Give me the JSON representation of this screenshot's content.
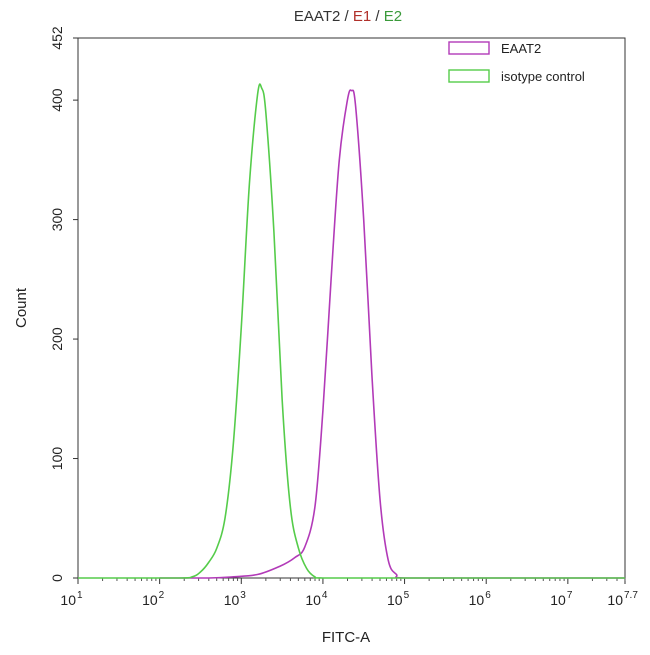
{
  "chart_data": {
    "type": "line",
    "title_parts": [
      {
        "text": "EAAT2",
        "color": "#333333"
      },
      {
        "text": " / ",
        "color": "#333333"
      },
      {
        "text": "E1",
        "color": "#b0302a"
      },
      {
        "text": " / ",
        "color": "#333333"
      },
      {
        "text": "E2",
        "color": "#3a9a3a"
      }
    ],
    "xlabel": "FITC-A",
    "ylabel": "Count",
    "x_scale": "log",
    "xlim": [
      10,
      50118723
    ],
    "ylim": [
      0,
      452
    ],
    "x_ticks": [
      {
        "base": "10",
        "exp": "1"
      },
      {
        "base": "10",
        "exp": "2"
      },
      {
        "base": "10",
        "exp": "3"
      },
      {
        "base": "10",
        "exp": "4"
      },
      {
        "base": "10",
        "exp": "5"
      },
      {
        "base": "10",
        "exp": "6"
      },
      {
        "base": "10",
        "exp": "7"
      },
      {
        "base": "10",
        "exp": "7.7"
      }
    ],
    "y_ticks": [
      "0",
      "100",
      "200",
      "300",
      "400",
      "452"
    ],
    "legend_position": "top-right",
    "series": [
      {
        "name": "EAAT2",
        "color": "#b23ab8",
        "x": [
          100,
          400,
          800,
          1600,
          3000,
          4500,
          6000,
          8000,
          10000,
          12589,
          15849,
          19953,
          22387,
          25119,
          31623,
          39811,
          50119,
          63096,
          79433,
          100000,
          1000000,
          50118723
        ],
        "y": [
          0,
          0,
          1,
          3,
          10,
          17,
          26,
          60,
          140,
          250,
          350,
          400,
          408,
          395,
          300,
          170,
          65,
          15,
          3,
          0,
          0,
          0
        ]
      },
      {
        "name": "isotype control",
        "color": "#55cc4a",
        "x": [
          10,
          158,
          251,
          316,
          398,
          501,
          631,
          794,
          1000,
          1259,
          1585,
          1778,
          1995,
          2512,
          3162,
          3981,
          5012,
          6310,
          7943,
          10000,
          100000,
          50118723
        ],
        "y": [
          0,
          0,
          1,
          5,
          13,
          25,
          50,
          110,
          210,
          330,
          405,
          410,
          390,
          290,
          150,
          60,
          25,
          8,
          1,
          0,
          0,
          0
        ]
      }
    ]
  }
}
